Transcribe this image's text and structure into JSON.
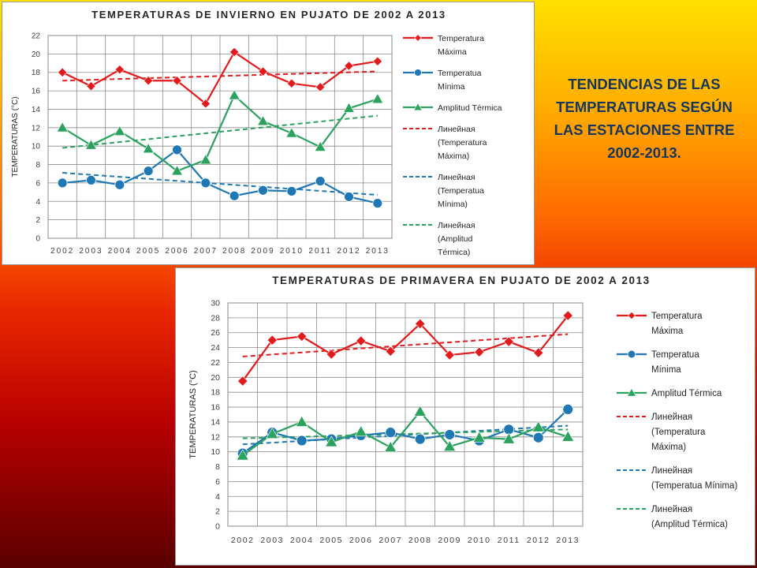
{
  "slide": {
    "title": "TENDENCIAS  DE LAS TEMPERATURAS SEGÚN LAS ESTACIONES ENTRE 2002-2013."
  },
  "colors": {
    "max": "#e31a1c",
    "min": "#1f78b4",
    "amp": "#2ca25f"
  },
  "chart_data": [
    {
      "type": "line",
      "title": "TEMPERATURAS DE INVIERNO EN PUJATO DE 2002 A 2013",
      "xlabel": "",
      "ylabel": "TEMPERATURAS  (°C)",
      "x": [
        "2002",
        "2003",
        "2004",
        "2005",
        "2006",
        "2007",
        "2008",
        "2009",
        "2010",
        "2011",
        "2012",
        "2013"
      ],
      "ylim": [
        0,
        22
      ],
      "yticks": [
        0,
        2,
        4,
        6,
        8,
        10,
        12,
        14,
        16,
        18,
        20,
        22
      ],
      "grid": true,
      "legend_position": "right",
      "series": [
        {
          "name": "Temperatura Máxima",
          "marker": "diamond",
          "color": "#e31a1c",
          "values": [
            18.0,
            16.5,
            18.3,
            17.1,
            17.1,
            14.6,
            20.2,
            18.1,
            16.8,
            16.4,
            18.7,
            19.2
          ]
        },
        {
          "name": "Temperatua Mínima",
          "marker": "circle",
          "color": "#1f78b4",
          "values": [
            6.0,
            6.3,
            5.8,
            7.3,
            9.6,
            6.0,
            4.6,
            5.2,
            5.1,
            6.2,
            4.5,
            3.8
          ]
        },
        {
          "name": "Amplitud Térmica",
          "marker": "triangle",
          "color": "#2ca25f",
          "values": [
            12.0,
            10.1,
            11.6,
            9.7,
            7.3,
            8.5,
            15.5,
            12.7,
            11.4,
            9.9,
            14.1,
            15.1
          ]
        }
      ],
      "trendlines": [
        {
          "name": "Линейная (Temperatura Máxima)",
          "color": "#e31a1c",
          "start": 17.1,
          "end": 18.1
        },
        {
          "name": "Линейная (Temperatua Mínima)",
          "color": "#1f78b4",
          "start": 7.1,
          "end": 4.7
        },
        {
          "name": "Линейная (Amplitud Térmica)",
          "color": "#2ca25f",
          "start": 9.8,
          "end": 13.3
        }
      ]
    },
    {
      "type": "line",
      "title": "TEMPERATURAS DE PRIMAVERA EN PUJATO DE 2002 A 2013",
      "xlabel": "",
      "ylabel": "TEMPERATURAS (°C)",
      "x": [
        "2002",
        "2003",
        "2004",
        "2005",
        "2006",
        "2007",
        "2008",
        "2009",
        "2010",
        "2011",
        "2012",
        "2013"
      ],
      "ylim": [
        0,
        30
      ],
      "yticks": [
        0,
        2,
        4,
        6,
        8,
        10,
        12,
        14,
        16,
        18,
        20,
        22,
        24,
        26,
        28,
        30
      ],
      "grid": true,
      "legend_position": "right",
      "series": [
        {
          "name": "Temperatura Máxima",
          "marker": "diamond",
          "color": "#e31a1c",
          "values": [
            19.5,
            25.0,
            25.5,
            23.1,
            24.9,
            23.5,
            27.2,
            23.0,
            23.4,
            24.8,
            23.3,
            28.3
          ]
        },
        {
          "name": "Temperatua Mínima",
          "marker": "circle",
          "color": "#1f78b4",
          "values": [
            9.8,
            12.6,
            11.5,
            11.7,
            12.2,
            12.6,
            11.7,
            12.3,
            11.5,
            13.0,
            11.9,
            15.7
          ]
        },
        {
          "name": "Amplitud Térmica",
          "marker": "triangle",
          "color": "#2ca25f",
          "values": [
            9.5,
            12.4,
            14.0,
            11.3,
            12.7,
            10.6,
            15.4,
            10.7,
            11.9,
            11.7,
            13.3,
            12.0
          ]
        }
      ],
      "trendlines": [
        {
          "name": "Линейная (Temperatura Máxima)",
          "color": "#e31a1c",
          "start": 22.8,
          "end": 25.8
        },
        {
          "name": "Линейная (Temperatua Mínima)",
          "color": "#1f78b4",
          "start": 11.0,
          "end": 13.5
        },
        {
          "name": "Линейная (Amplitud Térmica)",
          "color": "#2ca25f",
          "start": 11.8,
          "end": 13.0
        }
      ]
    }
  ]
}
